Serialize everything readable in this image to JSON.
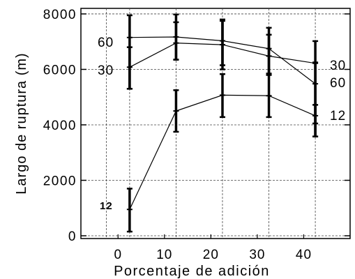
{
  "chart_data": {
    "type": "line",
    "title": "",
    "xlabel": "Porcentaje de adición",
    "ylabel": "Largo de ruptura (m)",
    "x_ticks": [
      "0",
      "10",
      "20",
      "30",
      "40"
    ],
    "y_ticks": [
      "0",
      "2000",
      "4000",
      "6000",
      "8000"
    ],
    "xlim": [
      -8,
      50
    ],
    "ylim": [
      -100,
      8200
    ],
    "grid": true,
    "x": [
      2.5,
      12.5,
      22.5,
      32.5,
      42.5
    ],
    "series": [
      {
        "name": "60",
        "values": [
          7150,
          7170,
          7030,
          6750,
          5480
        ],
        "error_low": [
          5300,
          6350,
          6150,
          5850,
          4050
        ],
        "error_high": [
          7950,
          7980,
          7800,
          7500,
          7020
        ]
      },
      {
        "name": "30",
        "values": [
          6080,
          6950,
          6890,
          6480,
          6220
        ],
        "error_low": [
          5300,
          6350,
          6000,
          5800,
          3580
        ],
        "error_high": [
          6800,
          7700,
          7750,
          7250,
          6250
        ]
      },
      {
        "name": "12",
        "values": [
          950,
          4500,
          5070,
          5050,
          4330
        ],
        "error_low": [
          150,
          3750,
          4280,
          4280,
          3580
        ],
        "error_high": [
          1700,
          5250,
          5830,
          5800,
          4720
        ]
      }
    ],
    "left_labels": [
      "60",
      "30",
      "12"
    ],
    "right_labels": [
      "30",
      "60",
      "12"
    ]
  }
}
